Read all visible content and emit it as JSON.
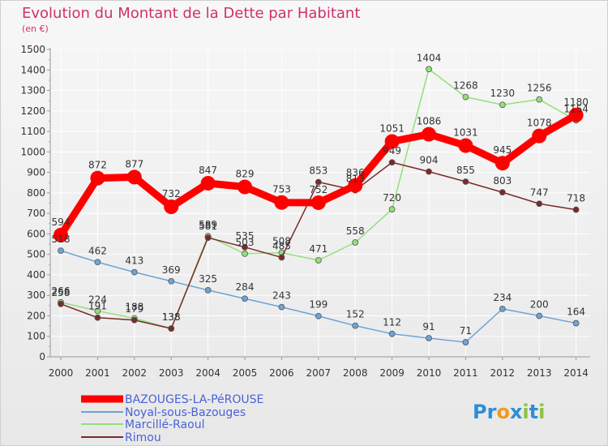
{
  "chart_data": {
    "type": "line",
    "title": "Evolution du Montant de la Dette par Habitant",
    "subtitle": "(en €)",
    "xlabel": "",
    "ylabel": "",
    "x": [
      "2000",
      "2001",
      "2002",
      "2003",
      "2004",
      "2005",
      "2006",
      "2007",
      "2008",
      "2009",
      "2010",
      "2011",
      "2012",
      "2013",
      "2014"
    ],
    "ylim": [
      0,
      1500
    ],
    "yticks": [
      0,
      100,
      200,
      300,
      400,
      500,
      600,
      700,
      800,
      900,
      1000,
      1100,
      1200,
      1300,
      1400,
      1500
    ],
    "grid": true,
    "legend_position": "bottom-left",
    "series": [
      {
        "name": "BAZOUGES-LA-PéROUSE",
        "color": "#ff0000",
        "values": [
          594,
          872,
          877,
          732,
          847,
          829,
          753,
          752,
          836,
          1051,
          1086,
          1031,
          945,
          1078,
          1180
        ]
      },
      {
        "name": "Noyal-sous-Bazouges",
        "color": "#6fa3d6",
        "values": [
          518,
          462,
          413,
          369,
          325,
          284,
          243,
          199,
          152,
          112,
          91,
          71,
          234,
          200,
          164
        ]
      },
      {
        "name": "Marcillé-Raoul",
        "color": "#92e07a",
        "values": [
          266,
          224,
          188,
          138,
          589,
          503,
          508,
          471,
          558,
          720,
          1404,
          1268,
          1230,
          1256,
          1154
        ]
      },
      {
        "name": "Rimou",
        "color": "#7a2a2a",
        "values": [
          258,
          191,
          179,
          138,
          581,
          535,
          485,
          853,
          813,
          949,
          904,
          855,
          803,
          747,
          718
        ]
      }
    ],
    "logo": {
      "letters": [
        "P",
        "r",
        "o",
        "x",
        "i",
        "t",
        "i"
      ],
      "colors": [
        "#2a8fd6",
        "#2a8fd6",
        "#f09a1e",
        "#2a8fd6",
        "#8ac43f",
        "#2a8fd6",
        "#8ac43f"
      ]
    }
  }
}
